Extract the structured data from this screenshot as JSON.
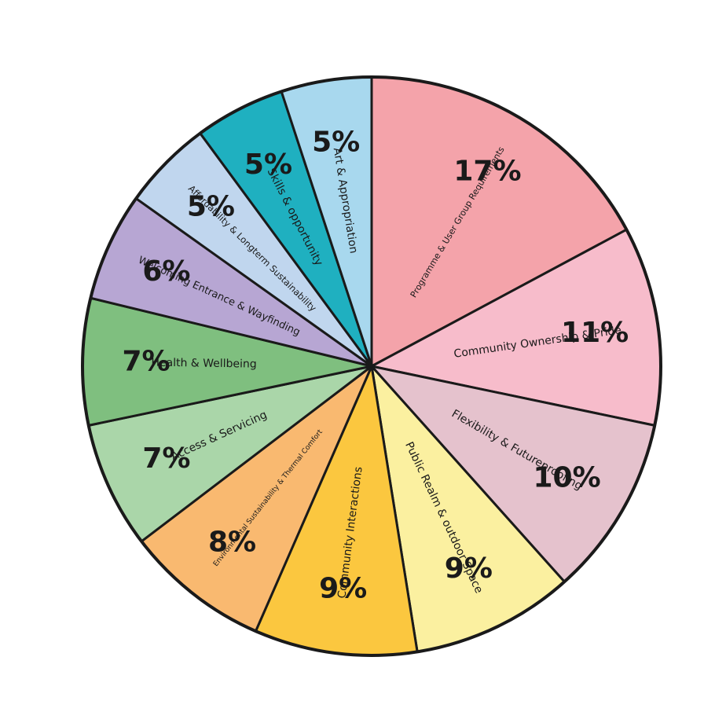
{
  "chart_data": {
    "type": "pie",
    "title": "",
    "start_angle_deg": 0,
    "categories": [
      "Programme & User Group Requirements",
      "Community Ownership & Pride",
      "Flexibility & Futureproofing",
      "Public Realm & outdoor Space",
      "Community Interactions",
      "Environmental Sustainability & Thermal Comfort",
      "Access & Servicing",
      "Health & Wellbeing",
      "Welcoming Entrance & Wayfinding",
      "Affordability & Longterm Sustainability",
      "Skills & opportunity",
      "Art & Appropriation"
    ],
    "values": [
      17,
      11,
      10,
      9,
      9,
      8,
      7,
      7,
      6,
      5,
      5,
      5
    ],
    "value_labels": [
      "17%",
      "11%",
      "10%",
      "9%",
      "9%",
      "8%",
      "7%",
      "7%",
      "6%",
      "5%",
      "5%",
      "5%"
    ],
    "colors": [
      "#f4a3aa",
      "#f7bccb",
      "#e5c2cd",
      "#fbf0a0",
      "#fbc73f",
      "#f9b970",
      "#aad6a9",
      "#7fbf7f",
      "#b7a6d3",
      "#c0d6ee",
      "#1fb0c0",
      "#a8d8ee"
    ],
    "outline_color": "#1a1a1a",
    "legend": "none"
  }
}
